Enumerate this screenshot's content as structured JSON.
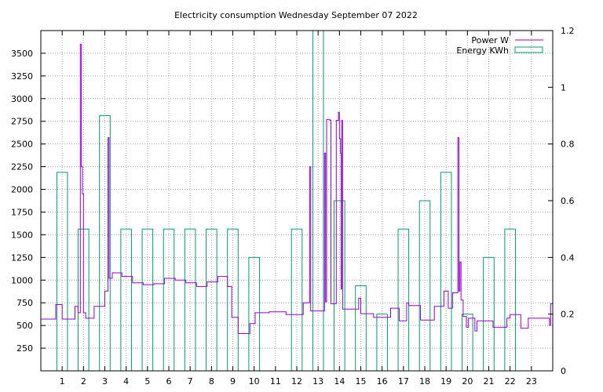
{
  "chart_data": {
    "type": "bar+line",
    "title": "Electricity consumption Wednesday September 07 2022",
    "x_ticks": [
      "1",
      "2",
      "3",
      "4",
      "5",
      "6",
      "7",
      "8",
      "9",
      "10",
      "11",
      "12",
      "13",
      "14",
      "15",
      "16",
      "17",
      "18",
      "19",
      "20",
      "21",
      "22",
      "23"
    ],
    "xlim": [
      0,
      24
    ],
    "y_left": {
      "ticks": [
        250,
        500,
        750,
        1000,
        1250,
        1500,
        1750,
        2000,
        2250,
        2500,
        2750,
        3000,
        3250,
        3500
      ],
      "lim": [
        0,
        3750
      ]
    },
    "y_right": {
      "ticks": [
        "0",
        "0.2",
        "0.4",
        "0.6",
        "0.8",
        "1",
        "1.2"
      ],
      "lim": [
        0,
        1.2
      ]
    },
    "grid": true,
    "legend_position": "top-right",
    "colors": {
      "power": "#9400d3",
      "energy": "#009e73"
    },
    "series": [
      {
        "name": "Power W",
        "axis": "left",
        "points": [
          [
            0.0,
            570
          ],
          [
            0.7,
            570
          ],
          [
            0.7,
            730
          ],
          [
            1.0,
            730
          ],
          [
            1.0,
            570
          ],
          [
            1.6,
            570
          ],
          [
            1.6,
            710
          ],
          [
            1.75,
            710
          ],
          [
            1.75,
            640
          ],
          [
            1.85,
            640
          ],
          [
            1.85,
            3600
          ],
          [
            1.9,
            3600
          ],
          [
            1.9,
            2250
          ],
          [
            1.95,
            2250
          ],
          [
            1.95,
            1950
          ],
          [
            2.0,
            1950
          ],
          [
            2.0,
            640
          ],
          [
            2.1,
            640
          ],
          [
            2.1,
            580
          ],
          [
            2.5,
            580
          ],
          [
            2.5,
            710
          ],
          [
            3.0,
            710
          ],
          [
            3.0,
            880
          ],
          [
            3.15,
            880
          ],
          [
            3.15,
            2570
          ],
          [
            3.2,
            2570
          ],
          [
            3.2,
            1020
          ],
          [
            3.35,
            1020
          ],
          [
            3.35,
            1080
          ],
          [
            3.8,
            1080
          ],
          [
            3.8,
            1040
          ],
          [
            4.3,
            1040
          ],
          [
            4.3,
            970
          ],
          [
            4.8,
            970
          ],
          [
            4.8,
            950
          ],
          [
            5.3,
            950
          ],
          [
            5.3,
            960
          ],
          [
            5.8,
            960
          ],
          [
            5.8,
            1020
          ],
          [
            6.3,
            1020
          ],
          [
            6.3,
            1000
          ],
          [
            6.8,
            1000
          ],
          [
            6.8,
            970
          ],
          [
            7.3,
            970
          ],
          [
            7.3,
            930
          ],
          [
            7.8,
            930
          ],
          [
            7.8,
            980
          ],
          [
            8.3,
            980
          ],
          [
            8.3,
            1040
          ],
          [
            8.75,
            1040
          ],
          [
            8.75,
            930
          ],
          [
            8.95,
            930
          ],
          [
            8.95,
            590
          ],
          [
            9.25,
            590
          ],
          [
            9.25,
            410
          ],
          [
            9.8,
            410
          ],
          [
            9.8,
            520
          ],
          [
            10.05,
            520
          ],
          [
            10.05,
            640
          ],
          [
            10.7,
            640
          ],
          [
            10.7,
            650
          ],
          [
            11.5,
            650
          ],
          [
            11.5,
            620
          ],
          [
            12.3,
            620
          ],
          [
            12.3,
            750
          ],
          [
            12.6,
            750
          ],
          [
            12.6,
            2250
          ],
          [
            12.65,
            2250
          ],
          [
            12.65,
            660
          ],
          [
            13.3,
            660
          ],
          [
            13.3,
            2400
          ],
          [
            13.35,
            2400
          ],
          [
            13.35,
            760
          ],
          [
            13.4,
            760
          ],
          [
            13.4,
            2770
          ],
          [
            13.55,
            2770
          ],
          [
            13.55,
            2760
          ],
          [
            13.6,
            2760
          ],
          [
            13.6,
            740
          ],
          [
            13.85,
            740
          ],
          [
            13.85,
            2760
          ],
          [
            13.95,
            2760
          ],
          [
            13.95,
            2850
          ],
          [
            14.0,
            2850
          ],
          [
            14.0,
            2560
          ],
          [
            14.05,
            2560
          ],
          [
            14.05,
            2400
          ],
          [
            14.08,
            2400
          ],
          [
            14.08,
            900
          ],
          [
            14.1,
            900
          ],
          [
            14.1,
            2760
          ],
          [
            14.15,
            2760
          ],
          [
            14.15,
            680
          ],
          [
            14.9,
            680
          ],
          [
            14.9,
            800
          ],
          [
            15.0,
            800
          ],
          [
            15.0,
            630
          ],
          [
            15.6,
            630
          ],
          [
            15.6,
            590
          ],
          [
            16.4,
            590
          ],
          [
            16.4,
            690
          ],
          [
            16.8,
            690
          ],
          [
            16.8,
            550
          ],
          [
            17.15,
            550
          ],
          [
            17.15,
            750
          ],
          [
            17.25,
            750
          ],
          [
            17.25,
            720
          ],
          [
            17.8,
            720
          ],
          [
            17.8,
            560
          ],
          [
            18.45,
            560
          ],
          [
            18.45,
            710
          ],
          [
            18.9,
            710
          ],
          [
            18.9,
            880
          ],
          [
            19.1,
            880
          ],
          [
            19.1,
            690
          ],
          [
            19.3,
            690
          ],
          [
            19.3,
            860
          ],
          [
            19.55,
            860
          ],
          [
            19.55,
            2570
          ],
          [
            19.6,
            2570
          ],
          [
            19.6,
            880
          ],
          [
            19.65,
            880
          ],
          [
            19.65,
            1200
          ],
          [
            19.7,
            1200
          ],
          [
            19.7,
            780
          ],
          [
            19.8,
            780
          ],
          [
            19.8,
            600
          ],
          [
            19.95,
            600
          ],
          [
            19.95,
            480
          ],
          [
            20.05,
            480
          ],
          [
            20.05,
            580
          ],
          [
            20.35,
            580
          ],
          [
            20.35,
            440
          ],
          [
            20.45,
            440
          ],
          [
            20.45,
            550
          ],
          [
            21.2,
            550
          ],
          [
            21.2,
            480
          ],
          [
            21.85,
            480
          ],
          [
            21.85,
            580
          ],
          [
            22.0,
            580
          ],
          [
            22.0,
            620
          ],
          [
            22.5,
            620
          ],
          [
            22.5,
            470
          ],
          [
            22.85,
            470
          ],
          [
            22.85,
            580
          ],
          [
            23.85,
            580
          ],
          [
            23.85,
            500
          ],
          [
            23.9,
            500
          ],
          [
            23.9,
            740
          ],
          [
            24.0,
            740
          ]
        ]
      },
      {
        "name": "Energy KWh",
        "axis": "right",
        "bars": [
          {
            "x": 1,
            "value": 0.7
          },
          {
            "x": 2,
            "value": 0.5
          },
          {
            "x": 3,
            "value": 0.9
          },
          {
            "x": 4,
            "value": 0.5
          },
          {
            "x": 5,
            "value": 0.5
          },
          {
            "x": 6,
            "value": 0.5
          },
          {
            "x": 7,
            "value": 0.5
          },
          {
            "x": 8,
            "value": 0.5
          },
          {
            "x": 9,
            "value": 0.5
          },
          {
            "x": 10,
            "value": 0.4
          },
          {
            "x": 11,
            "value": 0.0
          },
          {
            "x": 12,
            "value": 0.5
          },
          {
            "x": 13,
            "value": 1.2
          },
          {
            "x": 14,
            "value": 0.6
          },
          {
            "x": 15,
            "value": 0.3
          },
          {
            "x": 16,
            "value": 0.2
          },
          {
            "x": 17,
            "value": 0.5
          },
          {
            "x": 18,
            "value": 0.6
          },
          {
            "x": 19,
            "value": 0.7
          },
          {
            "x": 20,
            "value": 0.2
          },
          {
            "x": 21,
            "value": 0.4
          },
          {
            "x": 22,
            "value": 0.5
          }
        ]
      }
    ]
  }
}
